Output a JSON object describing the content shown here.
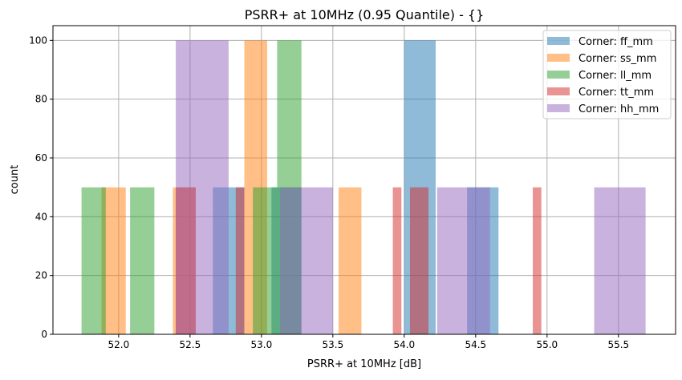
{
  "chart_data": {
    "type": "bar",
    "subtype": "overlapping-histogram",
    "title": "PSRR+ at 10MHz (0.95 Quantile) - {}",
    "xlabel": "PSRR+ at 10MHz [dB]",
    "ylabel": "count",
    "xlim": [
      51.54,
      55.9
    ],
    "ylim": [
      0,
      105
    ],
    "xticks": [
      "52.0",
      "52.5",
      "53.0",
      "53.5",
      "54.0",
      "54.5",
      "55.0",
      "55.5"
    ],
    "xtick_values": [
      52.0,
      52.5,
      53.0,
      53.5,
      54.0,
      54.5,
      55.0,
      55.5
    ],
    "yticks": [
      "0",
      "20",
      "40",
      "60",
      "80",
      "100"
    ],
    "ytick_values": [
      0,
      20,
      40,
      60,
      80,
      100
    ],
    "grid": true,
    "legend_position": "top-right",
    "bar_alpha": 0.5,
    "series": [
      {
        "name": "Corner: ff_mm",
        "color": "#1f77b4",
        "bins": [
          [
            52.66,
            52.88,
            50
          ],
          [
            53.07,
            53.28,
            50
          ],
          [
            54.0,
            54.22,
            100
          ],
          [
            54.44,
            54.66,
            50
          ]
        ]
      },
      {
        "name": "Corner: ss_mm",
        "color": "#ff7f0e",
        "bins": [
          [
            51.88,
            52.05,
            50
          ],
          [
            52.38,
            52.54,
            50
          ],
          [
            52.88,
            53.04,
            100
          ],
          [
            53.54,
            53.7,
            50
          ]
        ]
      },
      {
        "name": "Corner: ll_mm",
        "color": "#2ca02c",
        "bins": [
          [
            51.74,
            51.91,
            50
          ],
          [
            52.08,
            52.25,
            50
          ],
          [
            52.94,
            53.11,
            50
          ],
          [
            53.11,
            53.28,
            100
          ]
        ]
      },
      {
        "name": "Corner: tt_mm",
        "color": "#d62728",
        "bins": [
          [
            52.4,
            52.54,
            50
          ],
          [
            52.82,
            52.88,
            50
          ],
          [
            53.92,
            53.98,
            50
          ],
          [
            54.04,
            54.17,
            50
          ],
          [
            54.9,
            54.96,
            50
          ]
        ]
      },
      {
        "name": "Corner: hh_mm",
        "color": "#9467bd",
        "bins": [
          [
            52.4,
            52.77,
            100
          ],
          [
            53.13,
            53.5,
            50
          ],
          [
            54.23,
            54.6,
            50
          ],
          [
            55.33,
            55.69,
            50
          ]
        ]
      }
    ]
  }
}
